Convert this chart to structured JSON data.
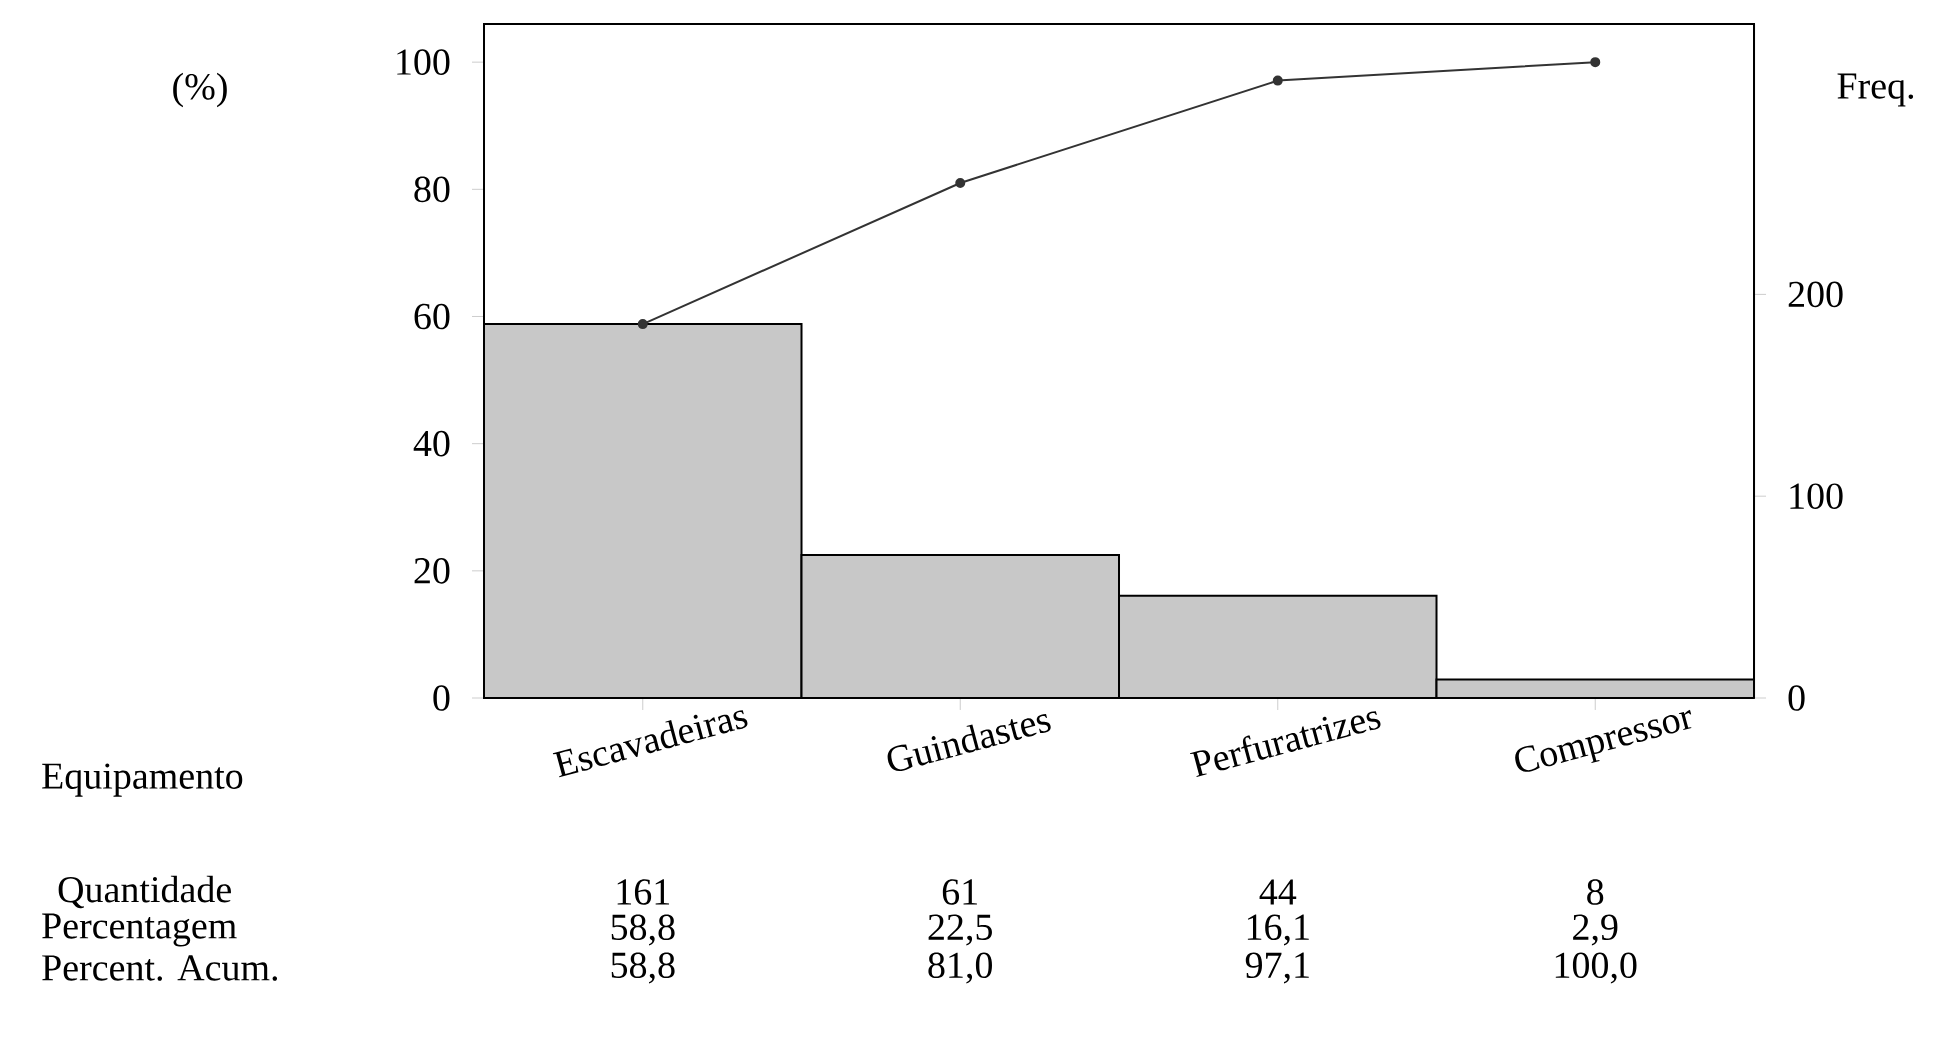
{
  "chart_data": {
    "type": "bar",
    "xlabel": "Equipamento",
    "ylabel": "(%)",
    "y2label": "Freq.",
    "categories": [
      "Escavadeiras",
      "Guindastes",
      "Perfuratrizes",
      "Compressor"
    ],
    "series": [
      {
        "color": "#c8c8c8",
        "values": [
          58.8,
          22.5,
          16.1,
          2.9
        ],
        "value_labels": [
          "58,8",
          "22,5",
          "16,1",
          "2,9"
        ]
      },
      {
        "type": "line",
        "color": "#333333",
        "values": [
          58.8,
          81.0,
          97.1,
          100.0
        ],
        "value_labels": [
          "58,8",
          "81,0",
          "97,1",
          "100,0"
        ]
      }
    ],
    "annotations": [
      "Quantidade",
      "161",
      "61",
      "44",
      "8",
      "Percentagem",
      "Percent. Acum."
    ],
    "ylim": [
      0,
      106
    ],
    "yticks": [
      0,
      20,
      40,
      60,
      80,
      100
    ],
    "y2lim": [
      0,
      334
    ],
    "y2ticks": [
      0,
      100,
      200
    ],
    "marker": "circle",
    "line_style": "solid"
  }
}
